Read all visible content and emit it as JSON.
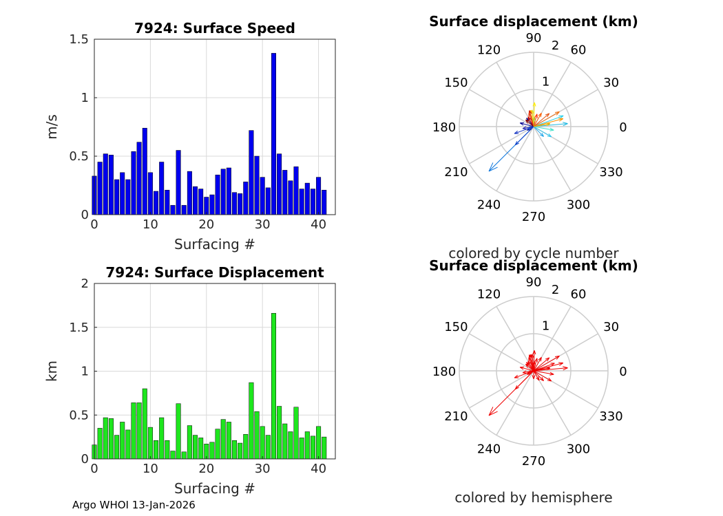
{
  "footer_text": "Argo WHOI 13-Jan-2026",
  "colors": {
    "speed_bar": "#0000ee",
    "displacement_bar": "#1ee61e",
    "hemisphere_arrow": "#ee0000",
    "grid": "#d9d9d9",
    "polar_grid": "#cccccc"
  },
  "chart_data": [
    {
      "type": "bar",
      "title": "7924: Surface Speed",
      "xlabel": "Surfacing #",
      "ylabel": "m/s",
      "xlim": [
        0,
        43
      ],
      "ylim": [
        0,
        1.5
      ],
      "xticks": [
        0,
        10,
        20,
        30,
        40
      ],
      "yticks": [
        0,
        0.5,
        1,
        1.5
      ],
      "ytick_labels": [
        "0",
        "0.5",
        "1",
        "1.5"
      ],
      "grid": true,
      "x": [
        0,
        1,
        2,
        3,
        4,
        5,
        6,
        7,
        8,
        9,
        10,
        11,
        12,
        13,
        14,
        15,
        16,
        17,
        18,
        19,
        20,
        21,
        22,
        23,
        24,
        25,
        26,
        27,
        28,
        29,
        30,
        31,
        32,
        33,
        34,
        35,
        36,
        37,
        38,
        39,
        40,
        41
      ],
      "values": [
        0.33,
        0.45,
        0.52,
        0.51,
        0.3,
        0.36,
        0.3,
        0.54,
        0.62,
        0.74,
        0.36,
        0.2,
        0.45,
        0.21,
        0.08,
        0.55,
        0.08,
        0.37,
        0.24,
        0.22,
        0.15,
        0.17,
        0.34,
        0.39,
        0.4,
        0.19,
        0.18,
        0.28,
        0.72,
        0.5,
        0.32,
        0.23,
        1.38,
        0.52,
        0.38,
        0.29,
        0.41,
        0.22,
        0.27,
        0.22,
        0.32,
        0.21
      ]
    },
    {
      "type": "bar",
      "title": "7924: Surface Displacement",
      "xlabel": "Surfacing #",
      "ylabel": "km",
      "xlim": [
        0,
        43
      ],
      "ylim": [
        0,
        2
      ],
      "xticks": [
        0,
        10,
        20,
        30,
        40
      ],
      "yticks": [
        0,
        0.5,
        1,
        1.5,
        2
      ],
      "ytick_labels": [
        "0",
        "0.5",
        "1",
        "1.5",
        "2"
      ],
      "grid": true,
      "x": [
        0,
        1,
        2,
        3,
        4,
        5,
        6,
        7,
        8,
        9,
        10,
        11,
        12,
        13,
        14,
        15,
        16,
        17,
        18,
        19,
        20,
        21,
        22,
        23,
        24,
        25,
        26,
        27,
        28,
        29,
        30,
        31,
        32,
        33,
        34,
        35,
        36,
        37,
        38,
        39,
        40,
        41
      ],
      "values": [
        0.16,
        0.35,
        0.47,
        0.46,
        0.27,
        0.42,
        0.33,
        0.64,
        0.64,
        0.8,
        0.36,
        0.21,
        0.47,
        0.21,
        0.09,
        0.63,
        0.08,
        0.38,
        0.27,
        0.24,
        0.17,
        0.19,
        0.34,
        0.45,
        0.42,
        0.21,
        0.18,
        0.28,
        0.87,
        0.54,
        0.37,
        0.27,
        1.66,
        0.6,
        0.4,
        0.31,
        0.59,
        0.24,
        0.31,
        0.26,
        0.37,
        0.25
      ]
    },
    {
      "type": "polar-vector",
      "title": "Surface displacement (km)",
      "subtitle": "colored by cycle number",
      "rlim": [
        0,
        2
      ],
      "rticks": [
        "1",
        "2"
      ],
      "angle_ticks": [
        "0",
        "30",
        "60",
        "90",
        "120",
        "150",
        "180",
        "210",
        "240",
        "270",
        "300",
        "330"
      ],
      "vectors": [
        {
          "angle": 225,
          "r": 1.7,
          "color": "#0a74dc"
        },
        {
          "angle": 200,
          "r": 0.55,
          "color": "#1030c0"
        },
        {
          "angle": 225,
          "r": 0.7,
          "color": "#0a40c8"
        },
        {
          "angle": 165,
          "r": 0.38,
          "color": "#00008f"
        },
        {
          "angle": 190,
          "r": 0.3,
          "color": "#2020b0"
        },
        {
          "angle": 210,
          "r": 0.2,
          "color": "#0010a0"
        },
        {
          "angle": 130,
          "r": 0.3,
          "color": "#101080"
        },
        {
          "angle": 20,
          "r": 0.85,
          "color": "#25d0e8"
        },
        {
          "angle": 5,
          "r": 0.92,
          "color": "#20b8e0"
        },
        {
          "angle": 350,
          "r": 0.55,
          "color": "#40e0c8"
        },
        {
          "angle": 330,
          "r": 0.55,
          "color": "#30c8f0"
        },
        {
          "angle": 315,
          "r": 0.38,
          "color": "#28a8e8"
        },
        {
          "angle": 10,
          "r": 0.45,
          "color": "#60f0a0"
        },
        {
          "angle": 30,
          "r": 0.8,
          "color": "#f07010"
        },
        {
          "angle": 15,
          "r": 0.82,
          "color": "#ff9000"
        },
        {
          "angle": 40,
          "r": 0.55,
          "color": "#e05010"
        },
        {
          "angle": 10,
          "r": 0.45,
          "color": "#f0b000"
        },
        {
          "angle": 88,
          "r": 0.65,
          "color": "#ffee00"
        },
        {
          "angle": 95,
          "r": 0.45,
          "color": "#e0e020"
        },
        {
          "angle": 100,
          "r": 0.45,
          "color": "#ffb000"
        },
        {
          "angle": 105,
          "r": 0.45,
          "color": "#d02000"
        },
        {
          "angle": 110,
          "r": 0.38,
          "color": "#f04010"
        },
        {
          "angle": 60,
          "r": 0.42,
          "color": "#ff6000"
        },
        {
          "angle": 120,
          "r": 0.3,
          "color": "#c00000"
        },
        {
          "angle": 75,
          "r": 0.35,
          "color": "#ff3000"
        },
        {
          "angle": 140,
          "r": 0.28,
          "color": "#880000"
        },
        {
          "angle": 85,
          "r": 0.25,
          "color": "#b0c030"
        },
        {
          "angle": 200,
          "r": 0.18,
          "color": "#2050d0"
        }
      ]
    },
    {
      "type": "polar-vector",
      "title": "Surface displacement (km)",
      "subtitle": "colored by hemisphere",
      "rlim": [
        0,
        2
      ],
      "rticks": [
        "1",
        "2"
      ],
      "angle_ticks": [
        "0",
        "30",
        "60",
        "90",
        "120",
        "150",
        "180",
        "210",
        "240",
        "270",
        "300",
        "330"
      ],
      "vectors": [
        {
          "angle": 225,
          "r": 1.7
        },
        {
          "angle": 200,
          "r": 0.55
        },
        {
          "angle": 225,
          "r": 0.7
        },
        {
          "angle": 165,
          "r": 0.38
        },
        {
          "angle": 190,
          "r": 0.3
        },
        {
          "angle": 210,
          "r": 0.2
        },
        {
          "angle": 130,
          "r": 0.3
        },
        {
          "angle": 20,
          "r": 0.6
        },
        {
          "angle": 5,
          "r": 0.92
        },
        {
          "angle": 350,
          "r": 0.55
        },
        {
          "angle": 330,
          "r": 0.55
        },
        {
          "angle": 315,
          "r": 0.38
        },
        {
          "angle": 10,
          "r": 0.45
        },
        {
          "angle": 30,
          "r": 0.8
        },
        {
          "angle": 15,
          "r": 0.82
        },
        {
          "angle": 40,
          "r": 0.55
        },
        {
          "angle": 10,
          "r": 0.45
        },
        {
          "angle": 88,
          "r": 0.55
        },
        {
          "angle": 95,
          "r": 0.45
        },
        {
          "angle": 100,
          "r": 0.45
        },
        {
          "angle": 105,
          "r": 0.45
        },
        {
          "angle": 110,
          "r": 0.38
        },
        {
          "angle": 60,
          "r": 0.42
        },
        {
          "angle": 120,
          "r": 0.3
        },
        {
          "angle": 75,
          "r": 0.35
        },
        {
          "angle": 140,
          "r": 0.28
        },
        {
          "angle": 85,
          "r": 0.25
        },
        {
          "angle": 200,
          "r": 0.18
        },
        {
          "angle": 300,
          "r": 0.3
        },
        {
          "angle": 270,
          "r": 0.22
        }
      ]
    }
  ]
}
